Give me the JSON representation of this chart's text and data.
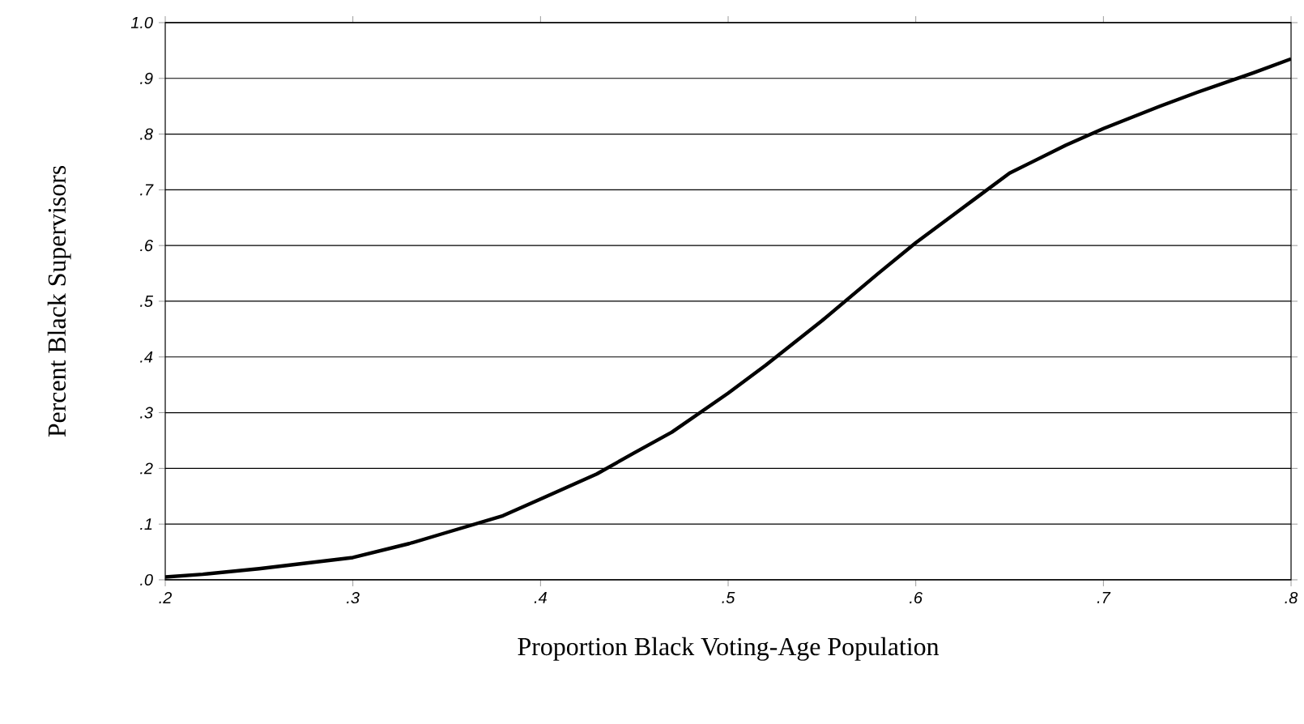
{
  "chart_data": {
    "type": "line",
    "xlabel": "Proportion Black Voting-Age Population",
    "ylabel": "Percent Black Supervisors",
    "x": [
      0.2,
      0.22,
      0.25,
      0.27,
      0.3,
      0.33,
      0.35,
      0.38,
      0.4,
      0.43,
      0.45,
      0.47,
      0.5,
      0.52,
      0.55,
      0.58,
      0.6,
      0.63,
      0.65,
      0.68,
      0.7,
      0.73,
      0.75,
      0.78,
      0.8
    ],
    "series": [
      {
        "color": "#000000",
        "values": [
          0.005,
          0.01,
          0.02,
          0.028,
          0.04,
          0.065,
          0.085,
          0.115,
          0.145,
          0.19,
          0.228,
          0.265,
          0.335,
          0.385,
          0.465,
          0.55,
          0.605,
          0.68,
          0.73,
          0.78,
          0.81,
          0.85,
          0.875,
          0.91,
          0.935
        ]
      }
    ],
    "xlim": [
      0.2,
      0.8
    ],
    "ylim": [
      0,
      1
    ],
    "xticks": [
      {
        "value": 0.2,
        "label": ".2"
      },
      {
        "value": 0.3,
        "label": ".3"
      },
      {
        "value": 0.4,
        "label": ".4"
      },
      {
        "value": 0.5,
        "label": ".5"
      },
      {
        "value": 0.6,
        "label": ".6"
      },
      {
        "value": 0.7,
        "label": ".7"
      },
      {
        "value": 0.8,
        "label": ".8"
      }
    ],
    "yticks": [
      {
        "value": 0,
        "label": ".0"
      },
      {
        "value": 0.1,
        "label": ".1"
      },
      {
        "value": 0.2,
        "label": ".2"
      },
      {
        "value": 0.3,
        "label": ".3"
      },
      {
        "value": 0.4,
        "label": ".4"
      },
      {
        "value": 0.5,
        "label": ".5"
      },
      {
        "value": 0.6,
        "label": ".6"
      },
      {
        "value": 0.7,
        "label": ".7"
      },
      {
        "value": 0.8,
        "label": ".8"
      },
      {
        "value": 0.9,
        "label": ".9"
      },
      {
        "value": 1,
        "label": "1.0"
      }
    ],
    "grid": "y",
    "marker": "none",
    "line_style": "solid"
  }
}
